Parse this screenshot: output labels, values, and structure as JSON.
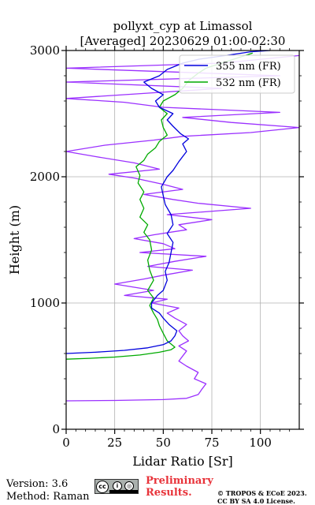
{
  "chart_data": {
    "type": "line",
    "title": "pollyxt_cyp at Limassol",
    "subtitle": "[Averaged] 20230629 01:00-02:30",
    "xlabel": "Lidar Ratio [Sr]",
    "ylabel": "Height (m)",
    "xlim": [
      0,
      120
    ],
    "ylim": [
      0,
      3000
    ],
    "x_ticks": [
      "0",
      "25",
      "50",
      "75",
      "100"
    ],
    "y_ticks": [
      "0",
      "1000",
      "2000",
      "3000"
    ],
    "grid": true,
    "legend_position": "top-right",
    "series": [
      {
        "name": "355 nm (FR)",
        "color": "#0000dd",
        "points": [
          [
            0,
            600
          ],
          [
            15,
            610
          ],
          [
            30,
            625
          ],
          [
            42,
            645
          ],
          [
            50,
            670
          ],
          [
            54,
            700
          ],
          [
            56,
            740
          ],
          [
            57,
            780
          ],
          [
            53,
            830
          ],
          [
            50,
            880
          ],
          [
            48,
            920
          ],
          [
            44,
            960
          ],
          [
            44,
            1000
          ],
          [
            47,
            1060
          ],
          [
            50,
            1100
          ],
          [
            52,
            1180
          ],
          [
            51,
            1250
          ],
          [
            53,
            1320
          ],
          [
            54,
            1400
          ],
          [
            55,
            1480
          ],
          [
            52,
            1550
          ],
          [
            55,
            1620
          ],
          [
            54,
            1700
          ],
          [
            51,
            1780
          ],
          [
            50,
            1850
          ],
          [
            49,
            1920
          ],
          [
            52,
            2000
          ],
          [
            55,
            2050
          ],
          [
            58,
            2120
          ],
          [
            62,
            2200
          ],
          [
            60,
            2260
          ],
          [
            63,
            2300
          ],
          [
            59,
            2340
          ],
          [
            55,
            2400
          ],
          [
            52,
            2450
          ],
          [
            55,
            2500
          ],
          [
            48,
            2550
          ],
          [
            46,
            2600
          ],
          [
            50,
            2650
          ],
          [
            44,
            2700
          ],
          [
            40,
            2750
          ],
          [
            48,
            2800
          ],
          [
            52,
            2850
          ],
          [
            60,
            2900
          ],
          [
            68,
            2930
          ],
          [
            82,
            2960
          ],
          [
            95,
            2990
          ],
          [
            105,
            3000
          ]
        ]
      },
      {
        "name": "532 nm (FR)",
        "color": "#00aa00",
        "points": [
          [
            0,
            555
          ],
          [
            12,
            562
          ],
          [
            25,
            572
          ],
          [
            38,
            588
          ],
          [
            48,
            610
          ],
          [
            54,
            630
          ],
          [
            56,
            650
          ],
          [
            52,
            700
          ],
          [
            50,
            760
          ],
          [
            48,
            820
          ],
          [
            47,
            870
          ],
          [
            45,
            920
          ],
          [
            43,
            980
          ],
          [
            45,
            1040
          ],
          [
            42,
            1100
          ],
          [
            45,
            1180
          ],
          [
            43,
            1260
          ],
          [
            42,
            1340
          ],
          [
            44,
            1420
          ],
          [
            43,
            1500
          ],
          [
            40,
            1560
          ],
          [
            42,
            1620
          ],
          [
            38,
            1680
          ],
          [
            40,
            1750
          ],
          [
            38,
            1820
          ],
          [
            40,
            1880
          ],
          [
            37,
            1950
          ],
          [
            38,
            2010
          ],
          [
            36,
            2080
          ],
          [
            40,
            2130
          ],
          [
            42,
            2180
          ],
          [
            46,
            2230
          ],
          [
            48,
            2280
          ],
          [
            52,
            2330
          ],
          [
            50,
            2390
          ],
          [
            49,
            2450
          ],
          [
            52,
            2500
          ],
          [
            48,
            2550
          ],
          [
            50,
            2600
          ],
          [
            56,
            2650
          ],
          [
            60,
            2700
          ],
          [
            63,
            2760
          ],
          [
            68,
            2820
          ],
          [
            72,
            2860
          ],
          [
            80,
            2900
          ],
          [
            88,
            2940
          ],
          [
            96,
            2980
          ]
        ]
      },
      {
        "name": "",
        "color": "#9b30ff",
        "points": [
          [
            0,
            225
          ],
          [
            25,
            228
          ],
          [
            50,
            235
          ],
          [
            62,
            245
          ],
          [
            68,
            275
          ],
          [
            70,
            320
          ],
          [
            72,
            360
          ],
          [
            66,
            400
          ],
          [
            68,
            450
          ],
          [
            62,
            500
          ],
          [
            58,
            540
          ],
          [
            60,
            580
          ],
          [
            62,
            620
          ],
          [
            58,
            660
          ],
          [
            63,
            700
          ],
          [
            60,
            740
          ],
          [
            58,
            780
          ],
          [
            62,
            830
          ],
          [
            56,
            880
          ],
          [
            52,
            920
          ],
          [
            58,
            960
          ],
          [
            44,
            1000
          ],
          [
            52,
            1030
          ],
          [
            30,
            1060
          ],
          [
            45,
            1100
          ],
          [
            25,
            1150
          ],
          [
            40,
            1190
          ],
          [
            50,
            1220
          ],
          [
            65,
            1260
          ],
          [
            42,
            1290
          ],
          [
            56,
            1330
          ],
          [
            72,
            1370
          ],
          [
            38,
            1400
          ],
          [
            56,
            1430
          ],
          [
            50,
            1470
          ],
          [
            35,
            1510
          ],
          [
            45,
            1540
          ],
          [
            62,
            1580
          ],
          [
            58,
            1620
          ],
          [
            75,
            1660
          ],
          [
            52,
            1700
          ],
          [
            95,
            1750
          ],
          [
            68,
            1790
          ],
          [
            55,
            1820
          ],
          [
            40,
            1860
          ],
          [
            60,
            1900
          ],
          [
            50,
            1940
          ],
          [
            35,
            1990
          ],
          [
            22,
            2020
          ],
          [
            48,
            2060
          ],
          [
            35,
            2110
          ],
          [
            15,
            2160
          ],
          [
            0,
            2200
          ],
          [
            20,
            2250
          ],
          [
            45,
            2290
          ],
          [
            60,
            2320
          ],
          [
            95,
            2350
          ],
          [
            120,
            2390
          ],
          [
            85,
            2430
          ],
          [
            60,
            2470
          ],
          [
            110,
            2510
          ],
          [
            50,
            2550
          ],
          [
            30,
            2590
          ],
          [
            0,
            2620
          ],
          [
            40,
            2660
          ],
          [
            80,
            2700
          ],
          [
            0,
            2750
          ],
          [
            110,
            2800
          ],
          [
            0,
            2860
          ],
          [
            80,
            2900
          ],
          [
            120,
            2960
          ]
        ]
      }
    ]
  },
  "footer": {
    "version": "Version: 3.6",
    "method": "Method: Raman",
    "license_badge": "cc-by-sa-badge",
    "preliminary_line1": "Preliminary",
    "preliminary_line2": "Results.",
    "copyright_line1": "© TROPOS & ECoE 2023.",
    "copyright_line2": "CC BY SA 4.0 License."
  }
}
